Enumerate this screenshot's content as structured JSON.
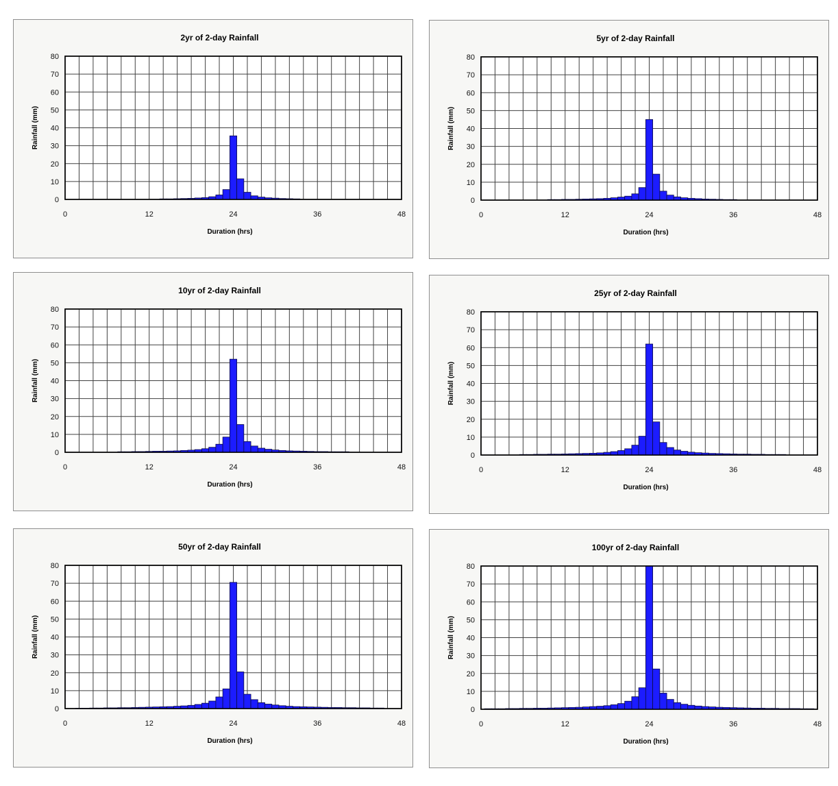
{
  "charts": [
    {
      "title": "2yr of 2-day Rainfall",
      "xlabel": "Duration (hrs)",
      "ylabel": "Rainfall (mm)",
      "xlim": [
        0,
        48
      ],
      "ylim": [
        0,
        80
      ],
      "xticks": [
        0,
        12,
        24,
        36,
        48
      ],
      "yticks": [
        0,
        10,
        20,
        30,
        40,
        50,
        60,
        70,
        80
      ],
      "type": "bar",
      "bar_width_hrs": 1,
      "x": [
        14,
        15,
        16,
        17,
        18,
        19,
        20,
        21,
        22,
        23,
        24,
        25,
        26,
        27,
        28,
        29,
        30,
        31,
        32,
        33
      ],
      "values": [
        0.3,
        0.3,
        0.4,
        0.5,
        0.6,
        0.8,
        1.0,
        1.5,
        2.5,
        5.5,
        35.5,
        11.5,
        4.0,
        2.0,
        1.3,
        0.9,
        0.7,
        0.5,
        0.4,
        0.3
      ]
    },
    {
      "title": "5yr of 2-day Rainfall",
      "xlabel": "Duration (hrs)",
      "ylabel": "Rainfall (mm)",
      "xlim": [
        0,
        48
      ],
      "ylim": [
        0,
        80
      ],
      "xticks": [
        0,
        12,
        24,
        36,
        48
      ],
      "yticks": [
        0,
        10,
        20,
        30,
        40,
        50,
        60,
        70,
        80
      ],
      "type": "bar",
      "bar_width_hrs": 1,
      "x": [
        10,
        11,
        12,
        13,
        14,
        15,
        16,
        17,
        18,
        19,
        20,
        21,
        22,
        23,
        24,
        25,
        26,
        27,
        28,
        29,
        30,
        31,
        32,
        33,
        34,
        35,
        36
      ],
      "values": [
        0.3,
        0.3,
        0.4,
        0.4,
        0.5,
        0.6,
        0.7,
        0.8,
        1.0,
        1.3,
        1.7,
        2.2,
        3.5,
        7.0,
        45.0,
        14.5,
        5.0,
        2.8,
        1.8,
        1.3,
        1.0,
        0.8,
        0.6,
        0.5,
        0.4,
        0.3,
        0.3
      ]
    },
    {
      "title": "10yr of 2-day Rainfall",
      "xlabel": "Duration (hrs)",
      "ylabel": "Rainfall (mm)",
      "xlim": [
        0,
        48
      ],
      "ylim": [
        0,
        80
      ],
      "xticks": [
        0,
        12,
        24,
        36,
        48
      ],
      "yticks": [
        0,
        10,
        20,
        30,
        40,
        50,
        60,
        70,
        80
      ],
      "type": "bar",
      "bar_width_hrs": 1,
      "x": [
        8,
        9,
        10,
        11,
        12,
        13,
        14,
        15,
        16,
        17,
        18,
        19,
        20,
        21,
        22,
        23,
        24,
        25,
        26,
        27,
        28,
        29,
        30,
        31,
        32,
        33,
        34,
        35,
        36,
        37,
        38,
        39,
        40
      ],
      "values": [
        0.3,
        0.3,
        0.4,
        0.4,
        0.5,
        0.6,
        0.6,
        0.7,
        0.8,
        1.0,
        1.2,
        1.5,
        2.0,
        2.8,
        4.5,
        8.5,
        52.0,
        15.5,
        6.0,
        3.5,
        2.3,
        1.7,
        1.3,
        1.0,
        0.8,
        0.7,
        0.6,
        0.5,
        0.4,
        0.4,
        0.3,
        0.3,
        0.3
      ]
    },
    {
      "title": "25yr of 2-day Rainfall",
      "xlabel": "Duration (hrs)",
      "ylabel": "Rainfall (mm)",
      "xlim": [
        0,
        48
      ],
      "ylim": [
        0,
        80
      ],
      "xticks": [
        0,
        12,
        24,
        36,
        48
      ],
      "yticks": [
        0,
        10,
        20,
        30,
        40,
        50,
        60,
        70,
        80
      ],
      "type": "bar",
      "bar_width_hrs": 1,
      "x": [
        6,
        7,
        8,
        9,
        10,
        11,
        12,
        13,
        14,
        15,
        16,
        17,
        18,
        19,
        20,
        21,
        22,
        23,
        24,
        25,
        26,
        27,
        28,
        29,
        30,
        31,
        32,
        33,
        34,
        35,
        36,
        37,
        38,
        39,
        40,
        41,
        42,
        43
      ],
      "values": [
        0.3,
        0.3,
        0.4,
        0.4,
        0.5,
        0.5,
        0.6,
        0.7,
        0.8,
        0.9,
        1.0,
        1.2,
        1.5,
        1.9,
        2.5,
        3.5,
        5.5,
        10.5,
        62.0,
        18.5,
        7.0,
        4.2,
        2.8,
        2.1,
        1.6,
        1.3,
        1.1,
        0.9,
        0.8,
        0.7,
        0.6,
        0.5,
        0.5,
        0.4,
        0.4,
        0.3,
        0.3,
        0.3
      ]
    },
    {
      "title": "50yr of 2-day Rainfall",
      "xlabel": "Duration (hrs)",
      "ylabel": "Rainfall (mm)",
      "xlim": [
        0,
        48
      ],
      "ylim": [
        0,
        80
      ],
      "xticks": [
        0,
        12,
        24,
        36,
        48
      ],
      "yticks": [
        0,
        10,
        20,
        30,
        40,
        50,
        60,
        70,
        80
      ],
      "type": "bar",
      "bar_width_hrs": 1,
      "x": [
        2,
        3,
        4,
        5,
        6,
        7,
        8,
        9,
        10,
        11,
        12,
        13,
        14,
        15,
        16,
        17,
        18,
        19,
        20,
        21,
        22,
        23,
        24,
        25,
        26,
        27,
        28,
        29,
        30,
        31,
        32,
        33,
        34,
        35,
        36,
        37,
        38,
        39,
        40,
        41,
        42,
        43,
        44,
        45
      ],
      "values": [
        0.2,
        0.2,
        0.3,
        0.3,
        0.4,
        0.4,
        0.5,
        0.5,
        0.6,
        0.7,
        0.8,
        0.9,
        1.0,
        1.1,
        1.3,
        1.5,
        1.8,
        2.3,
        3.0,
        4.2,
        6.5,
        11.0,
        70.5,
        20.5,
        8.0,
        5.0,
        3.3,
        2.5,
        2.0,
        1.6,
        1.3,
        1.1,
        1.0,
        0.9,
        0.8,
        0.7,
        0.6,
        0.6,
        0.5,
        0.5,
        0.4,
        0.4,
        0.3,
        0.3
      ]
    },
    {
      "title": "100yr of 2-day Rainfall",
      "xlabel": "Duration (hrs)",
      "ylabel": "Rainfall (mm)",
      "xlim": [
        0,
        48
      ],
      "ylim": [
        0,
        80
      ],
      "xticks": [
        0,
        12,
        24,
        36,
        48
      ],
      "yticks": [
        0,
        10,
        20,
        30,
        40,
        50,
        60,
        70,
        80
      ],
      "type": "bar",
      "bar_width_hrs": 1,
      "x": [
        1,
        2,
        3,
        4,
        5,
        6,
        7,
        8,
        9,
        10,
        11,
        12,
        13,
        14,
        15,
        16,
        17,
        18,
        19,
        20,
        21,
        22,
        23,
        24,
        25,
        26,
        27,
        28,
        29,
        30,
        31,
        32,
        33,
        34,
        35,
        36,
        37,
        38,
        39,
        40,
        41,
        42,
        43,
        44,
        45,
        46,
        47
      ],
      "values": [
        0.3,
        0.3,
        0.3,
        0.4,
        0.4,
        0.5,
        0.5,
        0.6,
        0.6,
        0.7,
        0.8,
        0.9,
        1.0,
        1.1,
        1.3,
        1.5,
        1.7,
        2.0,
        2.5,
        3.2,
        4.5,
        7.0,
        12.0,
        80.0,
        22.5,
        9.0,
        5.5,
        3.7,
        2.8,
        2.2,
        1.8,
        1.5,
        1.3,
        1.1,
        1.0,
        0.9,
        0.8,
        0.7,
        0.6,
        0.6,
        0.5,
        0.5,
        0.4,
        0.4,
        0.4,
        0.3,
        0.3
      ]
    }
  ],
  "chart_data": [
    {
      "type": "bar",
      "title": "2yr of 2-day Rainfall",
      "xlabel": "Duration (hrs)",
      "ylabel": "Rainfall (mm)",
      "xlim": [
        0,
        48
      ],
      "ylim": [
        0,
        80
      ],
      "grid": true
    },
    {
      "type": "bar",
      "title": "5yr of 2-day Rainfall",
      "xlabel": "Duration (hrs)",
      "ylabel": "Rainfall (mm)",
      "xlim": [
        0,
        48
      ],
      "ylim": [
        0,
        80
      ],
      "grid": true
    },
    {
      "type": "bar",
      "title": "10yr of 2-day Rainfall",
      "xlabel": "Duration (hrs)",
      "ylabel": "Rainfall (mm)",
      "xlim": [
        0,
        48
      ],
      "ylim": [
        0,
        80
      ],
      "grid": true
    },
    {
      "type": "bar",
      "title": "25yr of 2-day Rainfall",
      "xlabel": "Duration (hrs)",
      "ylabel": "Rainfall (mm)",
      "xlim": [
        0,
        48
      ],
      "ylim": [
        0,
        80
      ],
      "grid": true
    },
    {
      "type": "bar",
      "title": "50yr of 2-day Rainfall",
      "xlabel": "Duration (hrs)",
      "ylabel": "Rainfall (mm)",
      "xlim": [
        0,
        48
      ],
      "ylim": [
        0,
        80
      ],
      "grid": true
    },
    {
      "type": "bar",
      "title": "100yr of 2-day Rainfall",
      "xlabel": "Duration (hrs)",
      "ylabel": "Rainfall (mm)",
      "xlim": [
        0,
        48
      ],
      "ylim": [
        0,
        80
      ],
      "grid": true
    }
  ],
  "colors": {
    "bar_fill": "#1c1cff",
    "panel_bg": "#f7f7f5",
    "plot_bg": "#ffffff"
  }
}
